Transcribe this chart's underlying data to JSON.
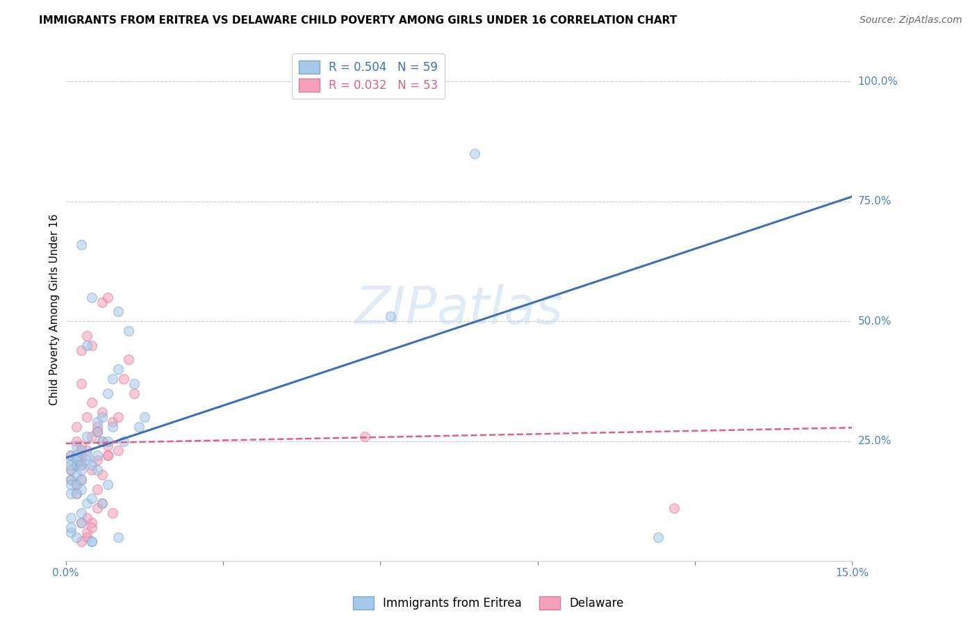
{
  "title": "IMMIGRANTS FROM ERITREA VS DELAWARE CHILD POVERTY AMONG GIRLS UNDER 16 CORRELATION CHART",
  "source": "Source: ZipAtlas.com",
  "ylabel": "Child Poverty Among Girls Under 16",
  "xlim": [
    0.0,
    0.15
  ],
  "ylim": [
    0.0,
    1.05
  ],
  "yticks": [
    0.0,
    0.25,
    0.5,
    0.75,
    1.0
  ],
  "ytick_labels": [
    "",
    "25.0%",
    "50.0%",
    "75.0%",
    "100.0%"
  ],
  "xticks": [
    0.0,
    0.03,
    0.06,
    0.09,
    0.12,
    0.15
  ],
  "xtick_labels": [
    "0.0%",
    "",
    "",
    "",
    "",
    "15.0%"
  ],
  "legend_entries": [
    {
      "label": "Immigrants from Eritrea",
      "color": "#a8c8e8",
      "R": "0.504",
      "N": "59"
    },
    {
      "label": "Delaware",
      "color": "#f4a0b8",
      "R": "0.032",
      "N": "53"
    }
  ],
  "blue_scatter_x": [
    0.001,
    0.001,
    0.001,
    0.001,
    0.001,
    0.001,
    0.002,
    0.002,
    0.002,
    0.002,
    0.002,
    0.002,
    0.002,
    0.003,
    0.003,
    0.003,
    0.003,
    0.003,
    0.003,
    0.003,
    0.004,
    0.004,
    0.004,
    0.004,
    0.005,
    0.005,
    0.005,
    0.006,
    0.006,
    0.006,
    0.006,
    0.007,
    0.007,
    0.007,
    0.008,
    0.008,
    0.008,
    0.009,
    0.009,
    0.01,
    0.01,
    0.01,
    0.011,
    0.012,
    0.013,
    0.014,
    0.015,
    0.003,
    0.004,
    0.005,
    0.001,
    0.001,
    0.062,
    0.078,
    0.001,
    0.005,
    0.001,
    0.002,
    0.113
  ],
  "blue_scatter_y": [
    0.19,
    0.21,
    0.22,
    0.17,
    0.16,
    0.14,
    0.2,
    0.22,
    0.18,
    0.21,
    0.24,
    0.16,
    0.14,
    0.2,
    0.19,
    0.17,
    0.1,
    0.08,
    0.23,
    0.15,
    0.21,
    0.12,
    0.22,
    0.26,
    0.2,
    0.13,
    0.04,
    0.27,
    0.19,
    0.22,
    0.29,
    0.3,
    0.25,
    0.12,
    0.25,
    0.16,
    0.35,
    0.28,
    0.38,
    0.52,
    0.4,
    0.05,
    0.25,
    0.48,
    0.37,
    0.28,
    0.3,
    0.66,
    0.45,
    0.55,
    0.06,
    0.09,
    0.51,
    0.85,
    0.2,
    0.04,
    0.07,
    0.05,
    0.05
  ],
  "pink_scatter_x": [
    0.001,
    0.001,
    0.001,
    0.002,
    0.002,
    0.002,
    0.002,
    0.003,
    0.003,
    0.003,
    0.003,
    0.004,
    0.004,
    0.004,
    0.005,
    0.005,
    0.005,
    0.006,
    0.006,
    0.006,
    0.007,
    0.007,
    0.007,
    0.008,
    0.008,
    0.008,
    0.009,
    0.009,
    0.01,
    0.01,
    0.011,
    0.012,
    0.013,
    0.003,
    0.004,
    0.005,
    0.006,
    0.007,
    0.008,
    0.003,
    0.004,
    0.005,
    0.006,
    0.007,
    0.002,
    0.003,
    0.004,
    0.005,
    0.003,
    0.006,
    0.057,
    0.003,
    0.116
  ],
  "pink_scatter_y": [
    0.22,
    0.17,
    0.19,
    0.28,
    0.25,
    0.2,
    0.16,
    0.37,
    0.24,
    0.2,
    0.22,
    0.47,
    0.3,
    0.05,
    0.45,
    0.33,
    0.08,
    0.27,
    0.28,
    0.15,
    0.54,
    0.31,
    0.18,
    0.55,
    0.22,
    0.24,
    0.29,
    0.1,
    0.3,
    0.23,
    0.38,
    0.42,
    0.35,
    0.44,
    0.09,
    0.26,
    0.21,
    0.12,
    0.22,
    0.21,
    0.06,
    0.19,
    0.27,
    0.25,
    0.14,
    0.17,
    0.23,
    0.07,
    0.08,
    0.11,
    0.26,
    0.04,
    0.11
  ],
  "blue_line_x": [
    0.0,
    0.15
  ],
  "blue_line_y": [
    0.215,
    0.76
  ],
  "pink_line_x": [
    0.0,
    0.15
  ],
  "pink_line_y": [
    0.245,
    0.278
  ],
  "scatter_size": 100,
  "scatter_alpha": 0.55,
  "scatter_edgewidth": 1.0,
  "blue_color": "#a8c8e8",
  "blue_edge_color": "#7aaad0",
  "pink_color": "#f4a0b8",
  "pink_edge_color": "#e07898",
  "blue_line_color": "#3a6fba",
  "pink_line_color": "#e06080",
  "watermark": "ZIPatlas",
  "grid_color": "#cccccc",
  "background_color": "#ffffff",
  "title_fontsize": 11,
  "source_fontsize": 10,
  "axis_label_fontsize": 11,
  "tick_fontsize": 11,
  "legend_fontsize": 12,
  "right_label_color": "#4a80c8"
}
